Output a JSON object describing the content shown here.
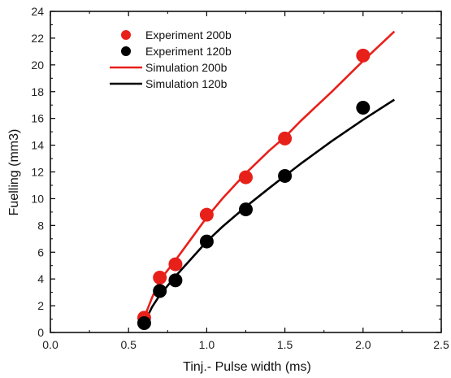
{
  "chart_data": {
    "type": "scatter",
    "xlabel": "Tinj.- Pulse width (ms)",
    "ylabel": "Fuelling (mm3)",
    "xlim": [
      0.0,
      2.5
    ],
    "ylim": [
      0,
      24
    ],
    "xticks": [
      0.0,
      0.5,
      1.0,
      1.5,
      2.0,
      2.5
    ],
    "xtick_labels": [
      "0.0",
      "0.5",
      "1.0",
      "1.5",
      "2.0",
      "2.5"
    ],
    "yticks": [
      0,
      2,
      4,
      6,
      8,
      10,
      12,
      14,
      16,
      18,
      20,
      22,
      24
    ],
    "ytick_labels": [
      "0",
      "2",
      "4",
      "6",
      "8",
      "10",
      "12",
      "14",
      "16",
      "18",
      "20",
      "22",
      "24"
    ],
    "grid": false,
    "legend_position": "top-left",
    "series": [
      {
        "name": "Experiment 200b",
        "kind": "scatter",
        "color": "#e8201a",
        "x": [
          0.6,
          0.7,
          0.8,
          1.0,
          1.25,
          1.5,
          2.0
        ],
        "y": [
          1.1,
          4.1,
          5.1,
          8.8,
          11.6,
          14.5,
          20.7
        ]
      },
      {
        "name": "Experiment 120b",
        "kind": "scatter",
        "color": "#000000",
        "x": [
          0.6,
          0.7,
          0.8,
          1.0,
          1.25,
          1.5,
          2.0
        ],
        "y": [
          0.7,
          3.1,
          3.9,
          6.8,
          9.2,
          11.7,
          16.8
        ]
      },
      {
        "name": "Simulation 200b",
        "kind": "line",
        "color": "#e8201a",
        "x": [
          0.6,
          0.65,
          0.7,
          0.8,
          0.9,
          1.0,
          1.1,
          1.25,
          1.4,
          1.5,
          1.6,
          1.8,
          2.0,
          2.2
        ],
        "y": [
          1.1,
          2.6,
          3.9,
          5.4,
          7.0,
          8.6,
          10.0,
          11.9,
          13.6,
          14.6,
          15.8,
          18.0,
          20.3,
          22.5
        ]
      },
      {
        "name": "Simulation 120b",
        "kind": "line",
        "color": "#000000",
        "x": [
          0.6,
          0.65,
          0.7,
          0.8,
          0.9,
          1.0,
          1.1,
          1.25,
          1.4,
          1.5,
          1.6,
          1.8,
          2.0,
          2.2
        ],
        "y": [
          0.7,
          1.9,
          2.8,
          4.2,
          5.5,
          6.8,
          7.9,
          9.4,
          10.8,
          11.7,
          12.6,
          14.3,
          15.9,
          17.4
        ]
      }
    ]
  }
}
